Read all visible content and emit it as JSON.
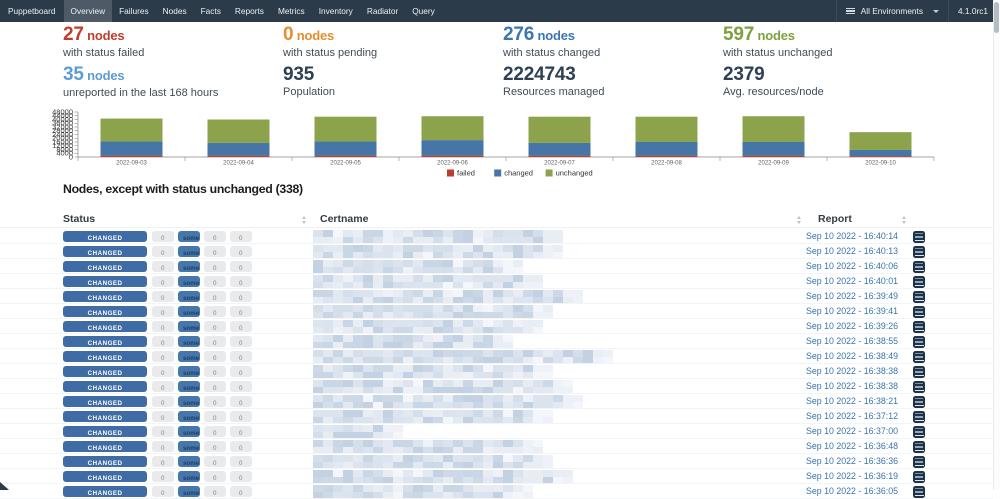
{
  "navbar": {
    "brand": "Puppetboard",
    "items": [
      {
        "label": "Overview",
        "active": true
      },
      {
        "label": "Failures",
        "active": false
      },
      {
        "label": "Nodes",
        "active": false
      },
      {
        "label": "Facts",
        "active": false
      },
      {
        "label": "Reports",
        "active": false
      },
      {
        "label": "Metrics",
        "active": false
      },
      {
        "label": "Inventory",
        "active": false
      },
      {
        "label": "Radiator",
        "active": false
      },
      {
        "label": "Query",
        "active": false
      }
    ],
    "environment": "All Environments",
    "version": "4.1.0rc1"
  },
  "stats": [
    {
      "value": "27",
      "unit": "nodes",
      "label": "with status failed",
      "color": "#bf3d2c"
    },
    {
      "value": "0",
      "unit": "nodes",
      "label": "with status pending",
      "color": "#e88c30"
    },
    {
      "value": "276",
      "unit": "nodes",
      "label": "with status changed",
      "color": "#3b76b4"
    },
    {
      "value": "597",
      "unit": "nodes",
      "label": "with status unchanged",
      "color": "#7da03f"
    },
    {
      "value": "35",
      "unit": "nodes",
      "label": "unreported in the last 168 hours",
      "color": "#5d9bd3"
    },
    {
      "value": "935",
      "unit": "",
      "label": "Population",
      "color": "#2e4154"
    },
    {
      "value": "2224743",
      "unit": "",
      "label": "Resources managed",
      "color": "#2e4154"
    },
    {
      "value": "2379",
      "unit": "",
      "label": "Avg. resources/node",
      "color": "#2e4154"
    }
  ],
  "chart_data": {
    "type": "bar",
    "stacked": true,
    "categories": [
      "2022-09-03",
      "2022-09-04",
      "2022-09-05",
      "2022-09-06",
      "2022-09-07",
      "2022-09-08",
      "2022-09-09",
      "2022-09-10"
    ],
    "series": [
      {
        "name": "failed",
        "color": "#bb3e30",
        "values": [
          1500,
          1500,
          1500,
          1500,
          1500,
          1500,
          1500,
          1000
        ]
      },
      {
        "name": "changed",
        "color": "#4676a8",
        "values": [
          15000,
          13500,
          15000,
          16500,
          13500,
          14500,
          14500,
          6500
        ]
      },
      {
        "name": "unchanged",
        "color": "#8da34b",
        "values": [
          24500,
          25000,
          26500,
          25500,
          28000,
          27000,
          27500,
          19000
        ]
      }
    ],
    "ylim": [
      0,
      48000
    ],
    "ytick_step": 4000,
    "legend_position": "bottom",
    "grid": false
  },
  "section": {
    "title": "Nodes, except with status unchanged (338)"
  },
  "table": {
    "columns": [
      "Status",
      "Certname",
      "Report"
    ],
    "rows": [
      {
        "status": "CHANGED",
        "counts": [
          "0",
          "some",
          "0",
          "0"
        ],
        "report": "Sep 10 2022 - 16:40:14",
        "redact_w": 242
      },
      {
        "status": "CHANGED",
        "counts": [
          "0",
          "some",
          "0",
          "0"
        ],
        "report": "Sep 10 2022 - 16:40:13",
        "redact_w": 249
      },
      {
        "status": "CHANGED",
        "counts": [
          "0",
          "some",
          "0",
          "0"
        ],
        "report": "Sep 10 2022 - 16:40:06",
        "redact_w": 207
      },
      {
        "status": "CHANGED",
        "counts": [
          "0",
          "some",
          "0",
          "0"
        ],
        "report": "Sep 10 2022 - 16:40:01",
        "redact_w": 221
      },
      {
        "status": "CHANGED",
        "counts": [
          "0",
          "some",
          "0",
          "0"
        ],
        "report": "Sep 10 2022 - 16:39:49",
        "redact_w": 262
      },
      {
        "status": "CHANGED",
        "counts": [
          "0",
          "some",
          "0",
          "0"
        ],
        "report": "Sep 10 2022 - 16:39:41",
        "redact_w": 235
      },
      {
        "status": "CHANGED",
        "counts": [
          "0",
          "some",
          "0",
          "0"
        ],
        "report": "Sep 10 2022 - 16:39:26",
        "redact_w": 226
      },
      {
        "status": "CHANGED",
        "counts": [
          "0",
          "some",
          "0",
          "0"
        ],
        "report": "Sep 10 2022 - 16:38:55",
        "redact_w": 199
      },
      {
        "status": "CHANGED",
        "counts": [
          "0",
          "some",
          "0",
          "0"
        ],
        "report": "Sep 10 2022 - 16:38:49",
        "redact_w": 300
      },
      {
        "status": "CHANGED",
        "counts": [
          "0",
          "some",
          "0",
          "0"
        ],
        "report": "Sep 10 2022 - 16:38:38",
        "redact_w": 235
      },
      {
        "status": "CHANGED",
        "counts": [
          "0",
          "some",
          "0",
          "0"
        ],
        "report": "Sep 10 2022 - 16:38:38",
        "redact_w": 257
      },
      {
        "status": "CHANGED",
        "counts": [
          "0",
          "some",
          "0",
          "0"
        ],
        "report": "Sep 10 2022 - 16:38:21",
        "redact_w": 269
      },
      {
        "status": "CHANGED",
        "counts": [
          "0",
          "some",
          "0",
          "0"
        ],
        "report": "Sep 10 2022 - 16:37:12",
        "redact_w": 232
      },
      {
        "status": "CHANGED",
        "counts": [
          "0",
          "some",
          "0",
          "0"
        ],
        "report": "Sep 10 2022 - 16:37:00",
        "redact_w": 88
      },
      {
        "status": "CHANGED",
        "counts": [
          "0",
          "some",
          "0",
          "0"
        ],
        "report": "Sep 10 2022 - 16:36:48",
        "redact_w": 223
      },
      {
        "status": "CHANGED",
        "counts": [
          "0",
          "some",
          "0",
          "0"
        ],
        "report": "Sep 10 2022 - 16:36:36",
        "redact_w": 235
      },
      {
        "status": "CHANGED",
        "counts": [
          "0",
          "some",
          "0",
          "0"
        ],
        "report": "Sep 10 2022 - 16:36:19",
        "redact_w": 257
      },
      {
        "status": "CHANGED",
        "counts": [
          "0",
          "some",
          "0",
          "0"
        ],
        "report": "Sep 10 2022 - 16:36:05",
        "redact_w": 217
      }
    ]
  }
}
